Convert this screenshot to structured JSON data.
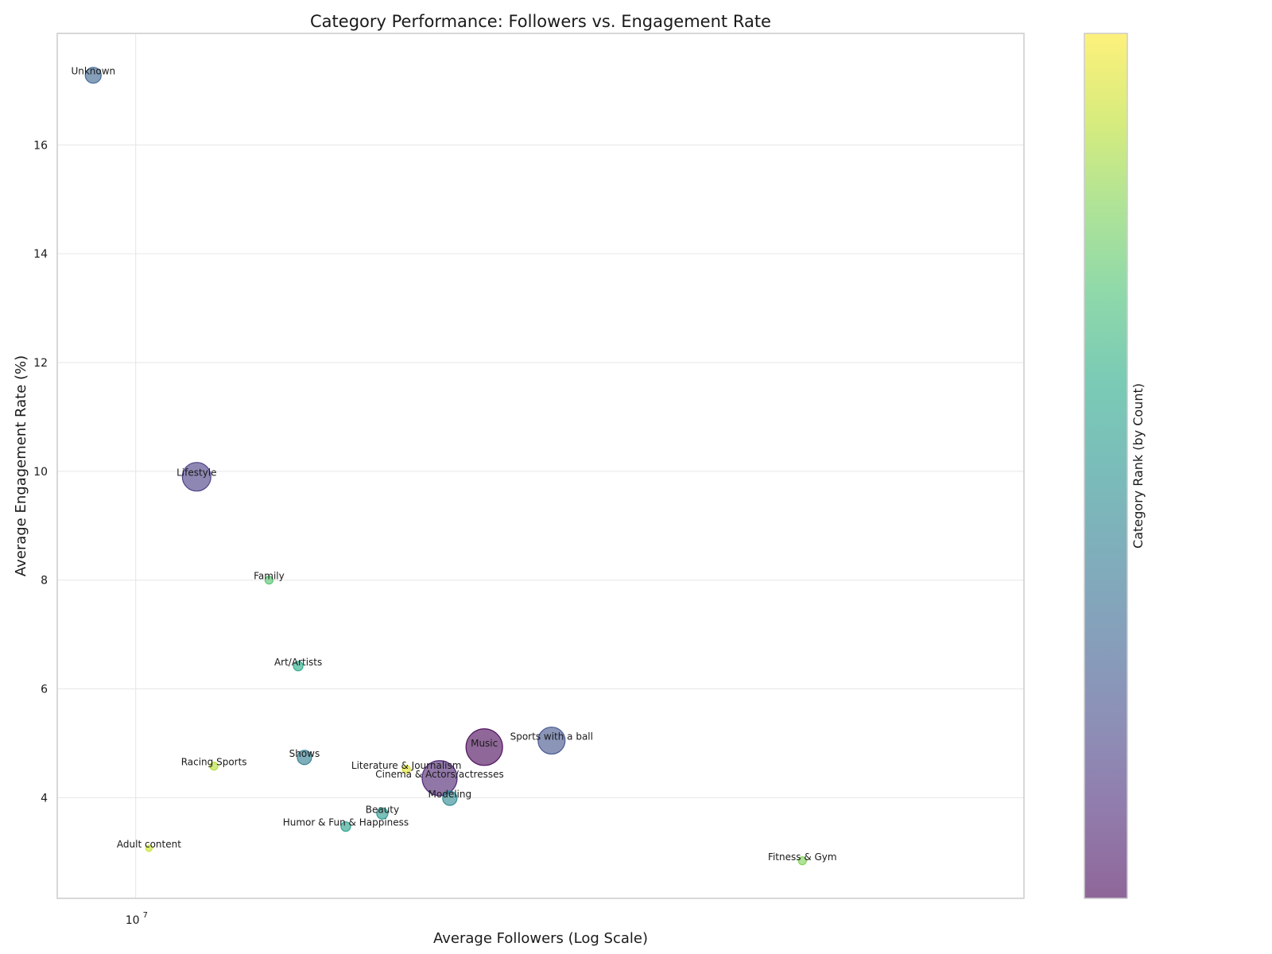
{
  "chart_data": {
    "type": "scatter",
    "title": "Category Performance: Followers vs. Engagement Rate",
    "xlabel": "Average Followers (Log Scale)",
    "ylabel": "Average Engagement Rate (%)",
    "x_scale": "log",
    "xlim": [
      8400000,
      72000000
    ],
    "ylim": [
      2.15,
      18.05
    ],
    "x_ticks": [
      {
        "value": 10000000,
        "base": "10",
        "exp": "7"
      }
    ],
    "y_ticks": [
      4,
      6,
      8,
      10,
      12,
      14,
      16
    ],
    "grid": true,
    "colormap": "viridis",
    "colorbar": {
      "label": "Category Rank (by Count)",
      "position": "right"
    },
    "points": [
      {
        "label": "Unknown",
        "x": 9100000,
        "y": 17.28,
        "size": 10,
        "color_value": 0.3
      },
      {
        "label": "Lifestyle",
        "x": 11450000,
        "y": 9.9,
        "size": 18,
        "color_value": 0.16
      },
      {
        "label": "Family",
        "x": 13450000,
        "y": 8.0,
        "size": 5,
        "color_value": 0.72
      },
      {
        "label": "Art/Artists",
        "x": 14350000,
        "y": 6.42,
        "size": 6,
        "color_value": 0.6
      },
      {
        "label": "Shows",
        "x": 14550000,
        "y": 4.74,
        "size": 9,
        "color_value": 0.4
      },
      {
        "label": "Racing Sports",
        "x": 11900000,
        "y": 4.58,
        "size": 5,
        "color_value": 0.88
      },
      {
        "label": "Literature & Journalism",
        "x": 18250000,
        "y": 4.52,
        "size": 5,
        "color_value": 0.95
      },
      {
        "label": "Music",
        "x": 21700000,
        "y": 4.93,
        "size": 23,
        "color_value": 0.0
      },
      {
        "label": "Sports with a ball",
        "x": 25200000,
        "y": 5.05,
        "size": 17,
        "color_value": 0.24
      },
      {
        "label": "Cinema & Actors/actresses",
        "x": 19650000,
        "y": 4.36,
        "size": 22,
        "color_value": 0.08
      },
      {
        "label": "Modeling",
        "x": 20100000,
        "y": 3.99,
        "size": 9,
        "color_value": 0.45
      },
      {
        "label": "Beauty",
        "x": 17300000,
        "y": 3.71,
        "size": 7,
        "color_value": 0.52
      },
      {
        "label": "Humor & Fun & Happiness",
        "x": 15950000,
        "y": 3.47,
        "size": 6,
        "color_value": 0.56
      },
      {
        "label": "Adult content",
        "x": 10300000,
        "y": 3.07,
        "size": 4,
        "color_value": 0.92
      },
      {
        "label": "Fitness & Gym",
        "x": 44000000,
        "y": 2.84,
        "size": 5,
        "color_value": 0.8
      }
    ]
  }
}
